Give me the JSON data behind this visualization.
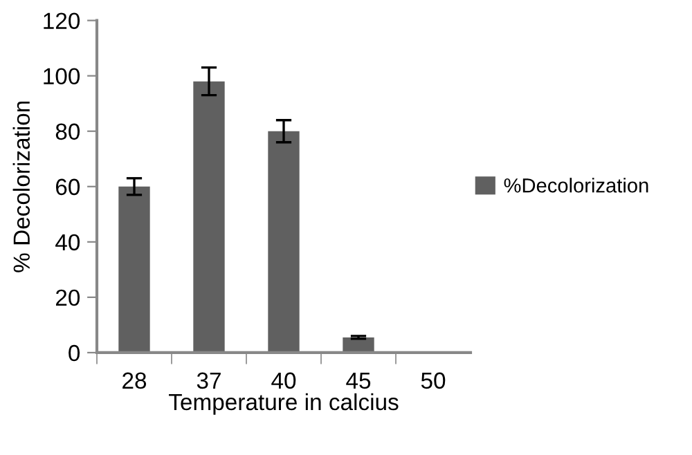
{
  "chart_data": {
    "type": "bar",
    "xlabel": "Temperature in calcius",
    "ylabel": "% Decolorization",
    "categories": [
      "28",
      "37",
      "40",
      "45",
      "50"
    ],
    "series": [
      {
        "name": "%Decolorization",
        "color": "#606060",
        "values": [
          60,
          98,
          80,
          5.5,
          0
        ],
        "errors": [
          3,
          5,
          4,
          0.5,
          null
        ]
      }
    ],
    "ylim": [
      0,
      120
    ],
    "yticks": [
      0,
      20,
      40,
      60,
      80,
      100,
      120
    ],
    "grid": false,
    "legend": "right"
  }
}
